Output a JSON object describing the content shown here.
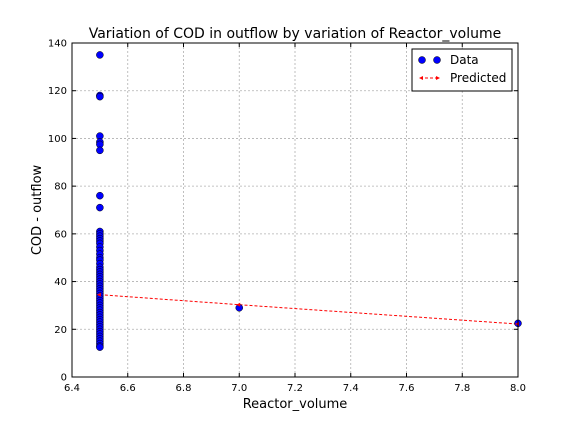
{
  "chart_data": {
    "type": "scatter",
    "title": "Variation of COD in outflow by variation of Reactor_volume",
    "xlabel": "Reactor_volume",
    "ylabel": "COD - outflow",
    "xlim": [
      6.4,
      8.0
    ],
    "ylim": [
      0,
      140
    ],
    "x_ticks": [
      "6.4",
      "6.6",
      "6.8",
      "7.0",
      "7.2",
      "7.4",
      "7.6",
      "7.8",
      "8.0"
    ],
    "y_ticks": [
      "0",
      "20",
      "40",
      "60",
      "80",
      "100",
      "120",
      "140"
    ],
    "grid": true,
    "legend_position": "top-right",
    "series": [
      {
        "name": "Data",
        "kind": "points",
        "color": "#0000ff",
        "points": [
          [
            6.5,
            135
          ],
          [
            6.5,
            118
          ],
          [
            6.5,
            117.5
          ],
          [
            6.5,
            101
          ],
          [
            6.5,
            98.5
          ],
          [
            6.5,
            97.5
          ],
          [
            6.5,
            95
          ],
          [
            6.5,
            76
          ],
          [
            6.5,
            71
          ],
          [
            6.5,
            61
          ],
          [
            6.5,
            60
          ],
          [
            6.5,
            59
          ],
          [
            6.5,
            58
          ],
          [
            6.5,
            57
          ],
          [
            6.5,
            56
          ],
          [
            6.5,
            54.5
          ],
          [
            6.5,
            53
          ],
          [
            6.5,
            51.5
          ],
          [
            6.5,
            50
          ],
          [
            6.5,
            49
          ],
          [
            6.5,
            47.5
          ],
          [
            6.5,
            46
          ],
          [
            6.5,
            45
          ],
          [
            6.5,
            44
          ],
          [
            6.5,
            43
          ],
          [
            6.5,
            42
          ],
          [
            6.5,
            41
          ],
          [
            6.5,
            40
          ],
          [
            6.5,
            39
          ],
          [
            6.5,
            38
          ],
          [
            6.5,
            37
          ],
          [
            6.5,
            36
          ],
          [
            6.5,
            35
          ],
          [
            6.5,
            34
          ],
          [
            6.5,
            33
          ],
          [
            6.5,
            32
          ],
          [
            6.5,
            31
          ],
          [
            6.5,
            30
          ],
          [
            6.5,
            29
          ],
          [
            6.5,
            28
          ],
          [
            6.5,
            27
          ],
          [
            6.5,
            26
          ],
          [
            6.5,
            25
          ],
          [
            6.5,
            24
          ],
          [
            6.5,
            23
          ],
          [
            6.5,
            22
          ],
          [
            6.5,
            21
          ],
          [
            6.5,
            20
          ],
          [
            6.5,
            19
          ],
          [
            6.5,
            18
          ],
          [
            6.5,
            17
          ],
          [
            6.5,
            16
          ],
          [
            6.5,
            15
          ],
          [
            6.5,
            14
          ],
          [
            6.5,
            13
          ],
          [
            6.5,
            12.5
          ],
          [
            7.0,
            29
          ],
          [
            8.0,
            22.5
          ]
        ]
      },
      {
        "name": "Predicted",
        "kind": "line",
        "color": "#ff0000",
        "points": [
          [
            6.5,
            34.5
          ],
          [
            7.0,
            30.3
          ],
          [
            8.0,
            22.2
          ]
        ]
      }
    ]
  }
}
